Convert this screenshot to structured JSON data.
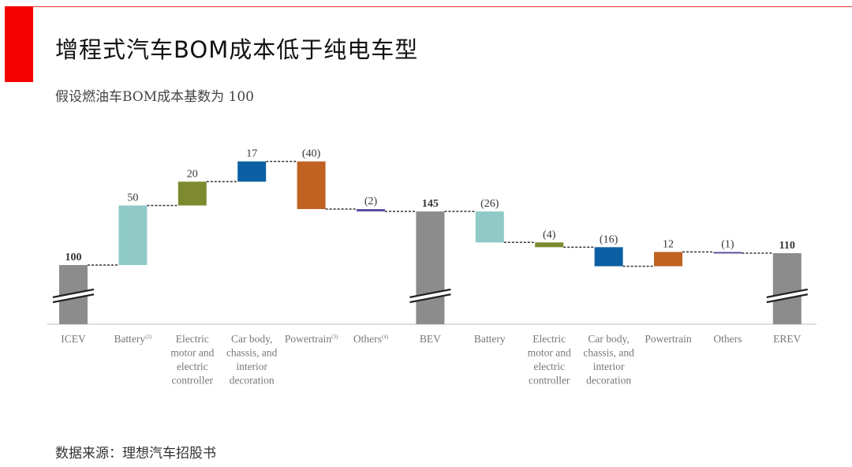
{
  "title": "增程式汽车BOM成本低于纯电车型",
  "subtitle": "假设燃油车BOM成本基数为 100",
  "source": "数据来源：理想汽车招股书",
  "colors": {
    "accent": "#f40000"
  },
  "chart_data": {
    "type": "waterfall",
    "axis_break": true,
    "grid": false,
    "steps": [
      {
        "label": [
          "ICEV"
        ],
        "kind": "total",
        "value": 100,
        "data_label": "100",
        "color": "#8c8c8c"
      },
      {
        "label": [
          "Battery"
        ],
        "footnote": "(2)",
        "kind": "delta",
        "value": 50,
        "data_label": "50",
        "color": "#8fcac7"
      },
      {
        "label": [
          "Electric",
          "motor and",
          "electric",
          "controller"
        ],
        "kind": "delta",
        "value": 20,
        "data_label": "20",
        "color": "#7d8a2e"
      },
      {
        "label": [
          "Car body,",
          "chassis, and",
          "interior",
          "decoration"
        ],
        "kind": "delta",
        "value": 17,
        "data_label": "17",
        "color": "#0c5fa2"
      },
      {
        "label": [
          "Powertrain"
        ],
        "footnote": "(3)",
        "kind": "delta",
        "value": -40,
        "data_label": "(40)",
        "color": "#bf6222"
      },
      {
        "label": [
          "Others"
        ],
        "footnote": "(4)",
        "kind": "delta",
        "value": -2,
        "data_label": "(2)",
        "color": "#5a4fa0"
      },
      {
        "label": [
          "BEV"
        ],
        "kind": "total",
        "value": 145,
        "data_label": "145",
        "color": "#8c8c8c"
      },
      {
        "label": [
          "Battery"
        ],
        "kind": "delta",
        "value": -26,
        "data_label": "(26)",
        "color": "#8fcac7"
      },
      {
        "label": [
          "Electric",
          "motor and",
          "electric",
          "controller"
        ],
        "kind": "delta",
        "value": -4,
        "data_label": "(4)",
        "color": "#7d8a2e"
      },
      {
        "label": [
          "Car body,",
          "chassis, and",
          "interior",
          "decoration"
        ],
        "kind": "delta",
        "value": -16,
        "data_label": "(16)",
        "color": "#0c5fa2"
      },
      {
        "label": [
          "Powertrain"
        ],
        "kind": "delta",
        "value": 12,
        "data_label": "12",
        "color": "#bf6222"
      },
      {
        "label": [
          "Others"
        ],
        "kind": "delta",
        "value": -1,
        "data_label": "(1)",
        "color": "#5a4fa0"
      },
      {
        "label": [
          "EREV"
        ],
        "kind": "total",
        "value": 110,
        "data_label": "110",
        "color": "#8c8c8c"
      }
    ]
  }
}
